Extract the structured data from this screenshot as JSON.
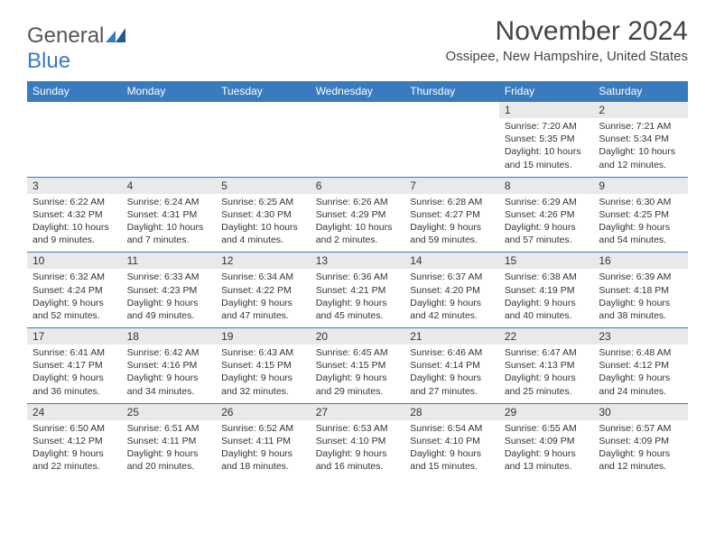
{
  "logo": {
    "general": "General",
    "blue": "Blue"
  },
  "title": "November 2024",
  "location": "Ossipee, New Hampshire, United States",
  "colors": {
    "header_bg": "#3a7bbf",
    "daynum_bg": "#e9e9e9",
    "rule": "#3a7bbf"
  },
  "weekdays": [
    "Sunday",
    "Monday",
    "Tuesday",
    "Wednesday",
    "Thursday",
    "Friday",
    "Saturday"
  ],
  "weeks": [
    [
      null,
      null,
      null,
      null,
      null,
      {
        "n": "1",
        "sr": "Sunrise: 7:20 AM",
        "ss": "Sunset: 5:35 PM",
        "d1": "Daylight: 10 hours",
        "d2": "and 15 minutes."
      },
      {
        "n": "2",
        "sr": "Sunrise: 7:21 AM",
        "ss": "Sunset: 5:34 PM",
        "d1": "Daylight: 10 hours",
        "d2": "and 12 minutes."
      }
    ],
    [
      {
        "n": "3",
        "sr": "Sunrise: 6:22 AM",
        "ss": "Sunset: 4:32 PM",
        "d1": "Daylight: 10 hours",
        "d2": "and 9 minutes."
      },
      {
        "n": "4",
        "sr": "Sunrise: 6:24 AM",
        "ss": "Sunset: 4:31 PM",
        "d1": "Daylight: 10 hours",
        "d2": "and 7 minutes."
      },
      {
        "n": "5",
        "sr": "Sunrise: 6:25 AM",
        "ss": "Sunset: 4:30 PM",
        "d1": "Daylight: 10 hours",
        "d2": "and 4 minutes."
      },
      {
        "n": "6",
        "sr": "Sunrise: 6:26 AM",
        "ss": "Sunset: 4:29 PM",
        "d1": "Daylight: 10 hours",
        "d2": "and 2 minutes."
      },
      {
        "n": "7",
        "sr": "Sunrise: 6:28 AM",
        "ss": "Sunset: 4:27 PM",
        "d1": "Daylight: 9 hours",
        "d2": "and 59 minutes."
      },
      {
        "n": "8",
        "sr": "Sunrise: 6:29 AM",
        "ss": "Sunset: 4:26 PM",
        "d1": "Daylight: 9 hours",
        "d2": "and 57 minutes."
      },
      {
        "n": "9",
        "sr": "Sunrise: 6:30 AM",
        "ss": "Sunset: 4:25 PM",
        "d1": "Daylight: 9 hours",
        "d2": "and 54 minutes."
      }
    ],
    [
      {
        "n": "10",
        "sr": "Sunrise: 6:32 AM",
        "ss": "Sunset: 4:24 PM",
        "d1": "Daylight: 9 hours",
        "d2": "and 52 minutes."
      },
      {
        "n": "11",
        "sr": "Sunrise: 6:33 AM",
        "ss": "Sunset: 4:23 PM",
        "d1": "Daylight: 9 hours",
        "d2": "and 49 minutes."
      },
      {
        "n": "12",
        "sr": "Sunrise: 6:34 AM",
        "ss": "Sunset: 4:22 PM",
        "d1": "Daylight: 9 hours",
        "d2": "and 47 minutes."
      },
      {
        "n": "13",
        "sr": "Sunrise: 6:36 AM",
        "ss": "Sunset: 4:21 PM",
        "d1": "Daylight: 9 hours",
        "d2": "and 45 minutes."
      },
      {
        "n": "14",
        "sr": "Sunrise: 6:37 AM",
        "ss": "Sunset: 4:20 PM",
        "d1": "Daylight: 9 hours",
        "d2": "and 42 minutes."
      },
      {
        "n": "15",
        "sr": "Sunrise: 6:38 AM",
        "ss": "Sunset: 4:19 PM",
        "d1": "Daylight: 9 hours",
        "d2": "and 40 minutes."
      },
      {
        "n": "16",
        "sr": "Sunrise: 6:39 AM",
        "ss": "Sunset: 4:18 PM",
        "d1": "Daylight: 9 hours",
        "d2": "and 38 minutes."
      }
    ],
    [
      {
        "n": "17",
        "sr": "Sunrise: 6:41 AM",
        "ss": "Sunset: 4:17 PM",
        "d1": "Daylight: 9 hours",
        "d2": "and 36 minutes."
      },
      {
        "n": "18",
        "sr": "Sunrise: 6:42 AM",
        "ss": "Sunset: 4:16 PM",
        "d1": "Daylight: 9 hours",
        "d2": "and 34 minutes."
      },
      {
        "n": "19",
        "sr": "Sunrise: 6:43 AM",
        "ss": "Sunset: 4:15 PM",
        "d1": "Daylight: 9 hours",
        "d2": "and 32 minutes."
      },
      {
        "n": "20",
        "sr": "Sunrise: 6:45 AM",
        "ss": "Sunset: 4:15 PM",
        "d1": "Daylight: 9 hours",
        "d2": "and 29 minutes."
      },
      {
        "n": "21",
        "sr": "Sunrise: 6:46 AM",
        "ss": "Sunset: 4:14 PM",
        "d1": "Daylight: 9 hours",
        "d2": "and 27 minutes."
      },
      {
        "n": "22",
        "sr": "Sunrise: 6:47 AM",
        "ss": "Sunset: 4:13 PM",
        "d1": "Daylight: 9 hours",
        "d2": "and 25 minutes."
      },
      {
        "n": "23",
        "sr": "Sunrise: 6:48 AM",
        "ss": "Sunset: 4:12 PM",
        "d1": "Daylight: 9 hours",
        "d2": "and 24 minutes."
      }
    ],
    [
      {
        "n": "24",
        "sr": "Sunrise: 6:50 AM",
        "ss": "Sunset: 4:12 PM",
        "d1": "Daylight: 9 hours",
        "d2": "and 22 minutes."
      },
      {
        "n": "25",
        "sr": "Sunrise: 6:51 AM",
        "ss": "Sunset: 4:11 PM",
        "d1": "Daylight: 9 hours",
        "d2": "and 20 minutes."
      },
      {
        "n": "26",
        "sr": "Sunrise: 6:52 AM",
        "ss": "Sunset: 4:11 PM",
        "d1": "Daylight: 9 hours",
        "d2": "and 18 minutes."
      },
      {
        "n": "27",
        "sr": "Sunrise: 6:53 AM",
        "ss": "Sunset: 4:10 PM",
        "d1": "Daylight: 9 hours",
        "d2": "and 16 minutes."
      },
      {
        "n": "28",
        "sr": "Sunrise: 6:54 AM",
        "ss": "Sunset: 4:10 PM",
        "d1": "Daylight: 9 hours",
        "d2": "and 15 minutes."
      },
      {
        "n": "29",
        "sr": "Sunrise: 6:55 AM",
        "ss": "Sunset: 4:09 PM",
        "d1": "Daylight: 9 hours",
        "d2": "and 13 minutes."
      },
      {
        "n": "30",
        "sr": "Sunrise: 6:57 AM",
        "ss": "Sunset: 4:09 PM",
        "d1": "Daylight: 9 hours",
        "d2": "and 12 minutes."
      }
    ]
  ]
}
